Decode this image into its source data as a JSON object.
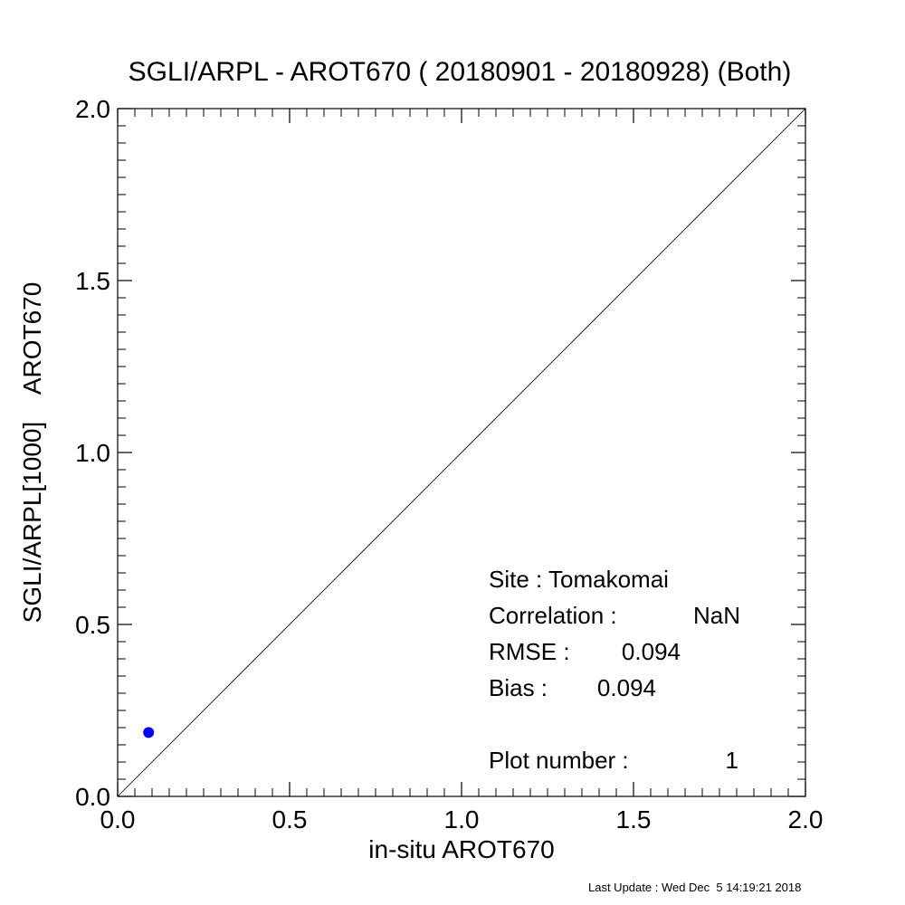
{
  "chart_data": {
    "type": "scatter",
    "title": "SGLI/ARPL - AROT670 ( 20180901 - 20180928) (Both)",
    "xlabel": "in-situ AROT670",
    "ylabel": "SGLI/ARPL[1000]    AROT670",
    "xlim": [
      0.0,
      2.0
    ],
    "ylim": [
      0.0,
      2.0
    ],
    "xticks": [
      0.0,
      0.5,
      1.0,
      1.5,
      2.0
    ],
    "yticks": [
      0.0,
      0.5,
      1.0,
      1.5,
      2.0
    ],
    "tick_labels_x": [
      "0.0",
      "0.5",
      "1.0",
      "1.5",
      "2.0"
    ],
    "tick_labels_y": [
      "0.0",
      "0.5",
      "1.0",
      "1.5",
      "2.0"
    ],
    "grid": false,
    "reference_line": "1:1",
    "series": [
      {
        "color": "#0000ff",
        "points": [
          {
            "x": 0.09,
            "y": 0.186
          }
        ]
      }
    ],
    "annotations": [
      {
        "key": "site",
        "label": "Site : Tomakomai",
        "value": ""
      },
      {
        "key": "correlation",
        "label": "Correlation :",
        "value": "NaN"
      },
      {
        "key": "rmse",
        "label": "RMSE :",
        "value": "0.094"
      },
      {
        "key": "bias",
        "label": "Bias :",
        "value": "0.094"
      },
      {
        "key": "plot_number",
        "label": "Plot number :",
        "value": "1"
      }
    ]
  },
  "footer": "Last Update : Wed Dec  5 14:19:21 2018"
}
